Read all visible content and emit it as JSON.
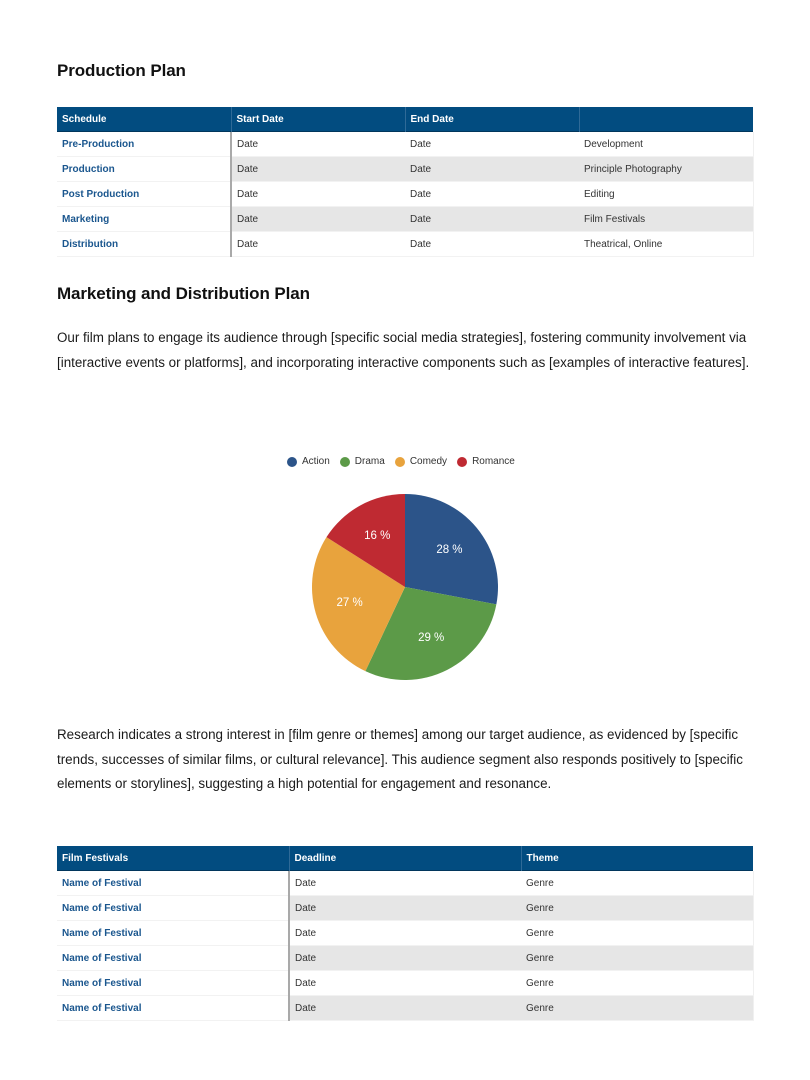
{
  "production_plan": {
    "title": "Production Plan",
    "columns": [
      "Schedule",
      "Start Date",
      "End Date",
      ""
    ],
    "rows": [
      {
        "schedule": "Pre-Production",
        "start": "Date",
        "end": "Date",
        "note": "Development"
      },
      {
        "schedule": "Production",
        "start": "Date",
        "end": "Date",
        "note": "Principle Photography"
      },
      {
        "schedule": "Post Production",
        "start": "Date",
        "end": "Date",
        "note": "Editing"
      },
      {
        "schedule": "Marketing",
        "start": "Date",
        "end": "Date",
        "note": "Film Festivals"
      },
      {
        "schedule": "Distribution",
        "start": "Date",
        "end": "Date",
        "note": "Theatrical, Online"
      }
    ]
  },
  "marketing_plan": {
    "title": "Marketing and Distribution Plan",
    "paragraph1": "Our film plans to engage its audience through [specific social media strategies], fostering community involvement via [interactive events or platforms], and incorporating interactive components such as [examples of interactive features].",
    "paragraph2": "Research indicates a strong interest in [film genre or themes] among our target audience, as evidenced by [specific trends, successes of similar films, or cultural relevance]. This audience segment also responds positively to [specific elements or storylines], suggesting a high potential for engagement and resonance."
  },
  "chart_data": {
    "type": "pie",
    "title": "",
    "categories": [
      "Action",
      "Drama",
      "Comedy",
      "Romance"
    ],
    "values": [
      28,
      29,
      27,
      16
    ],
    "labels": [
      "28 %",
      "29 %",
      "27 %",
      "16 %"
    ],
    "colors": [
      "#2c5489",
      "#5c9a48",
      "#e8a33d",
      "#bf2a32"
    ],
    "legend_position": "top",
    "start_angle_deg": 0,
    "direction": "clockwise"
  },
  "festivals": {
    "columns": [
      "Film Festivals",
      "Deadline",
      "Theme"
    ],
    "rows": [
      {
        "name": "Name of Festival",
        "deadline": "Date",
        "theme": "Genre"
      },
      {
        "name": "Name of Festival",
        "deadline": "Date",
        "theme": "Genre"
      },
      {
        "name": "Name of Festival",
        "deadline": "Date",
        "theme": "Genre"
      },
      {
        "name": "Name of Festival",
        "deadline": "Date",
        "theme": "Genre"
      },
      {
        "name": "Name of Festival",
        "deadline": "Date",
        "theme": "Genre"
      },
      {
        "name": "Name of Festival",
        "deadline": "Date",
        "theme": "Genre"
      }
    ]
  },
  "colors": {
    "table_header": "#024c80",
    "link_text": "#1a568e",
    "row_alt": "#e6e6e6"
  }
}
